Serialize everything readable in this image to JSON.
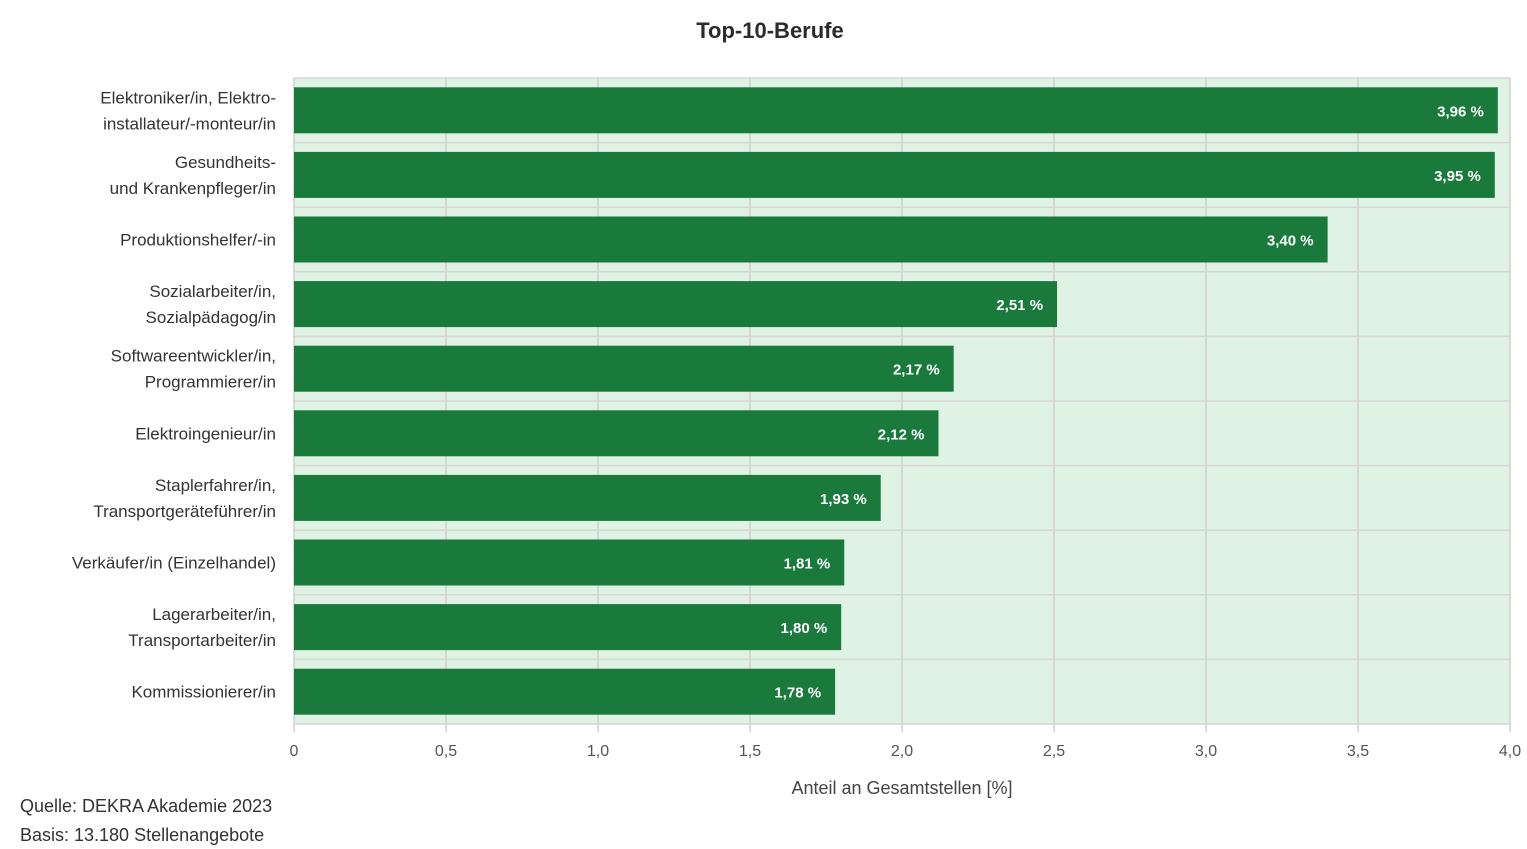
{
  "chart_data": {
    "type": "bar",
    "orientation": "horizontal",
    "title": "Top-10-Berufe",
    "xlabel": "Anteil an Gesamtstellen [%]",
    "ylabel": "",
    "xlim": [
      0,
      4.0
    ],
    "xticks": [
      "0",
      "0,5",
      "1,0",
      "1,5",
      "2,0",
      "2,5",
      "3,0",
      "3,5",
      "4,0"
    ],
    "grid": true,
    "bar_color": "#1a7a3c",
    "plot_background": "#dff2e3",
    "categories": [
      [
        "Elektroniker/in, Elektro-",
        "installateur/-monteur/in"
      ],
      [
        "Gesundheits-",
        "und Krankenpfleger/in"
      ],
      [
        "Produktionshelfer/-in"
      ],
      [
        "Sozialarbeiter/in,",
        "Sozialpädagog/in"
      ],
      [
        "Softwareentwickler/in,",
        "Programmierer/in"
      ],
      [
        "Elektroingenieur/in"
      ],
      [
        "Staplerfahrer/in,",
        "Transportgeräteführer/in"
      ],
      [
        "Verkäufer/in (Einzelhandel)"
      ],
      [
        "Lagerarbeiter/in,",
        "Transportarbeiter/in"
      ],
      [
        "Kommissionierer/in"
      ]
    ],
    "values": [
      3.96,
      3.95,
      3.4,
      2.51,
      2.17,
      2.12,
      1.93,
      1.81,
      1.8,
      1.78
    ],
    "value_labels": [
      "3,96 %",
      "3,95 %",
      "3,40 %",
      "2,51 %",
      "2,17 %",
      "2,12 %",
      "1,93 %",
      "1,81 %",
      "1,80 %",
      "1,78 %"
    ]
  },
  "footer": {
    "source": "Quelle: DEKRA Akademie 2023",
    "basis": "Basis: 13.180 Stellenangebote"
  }
}
